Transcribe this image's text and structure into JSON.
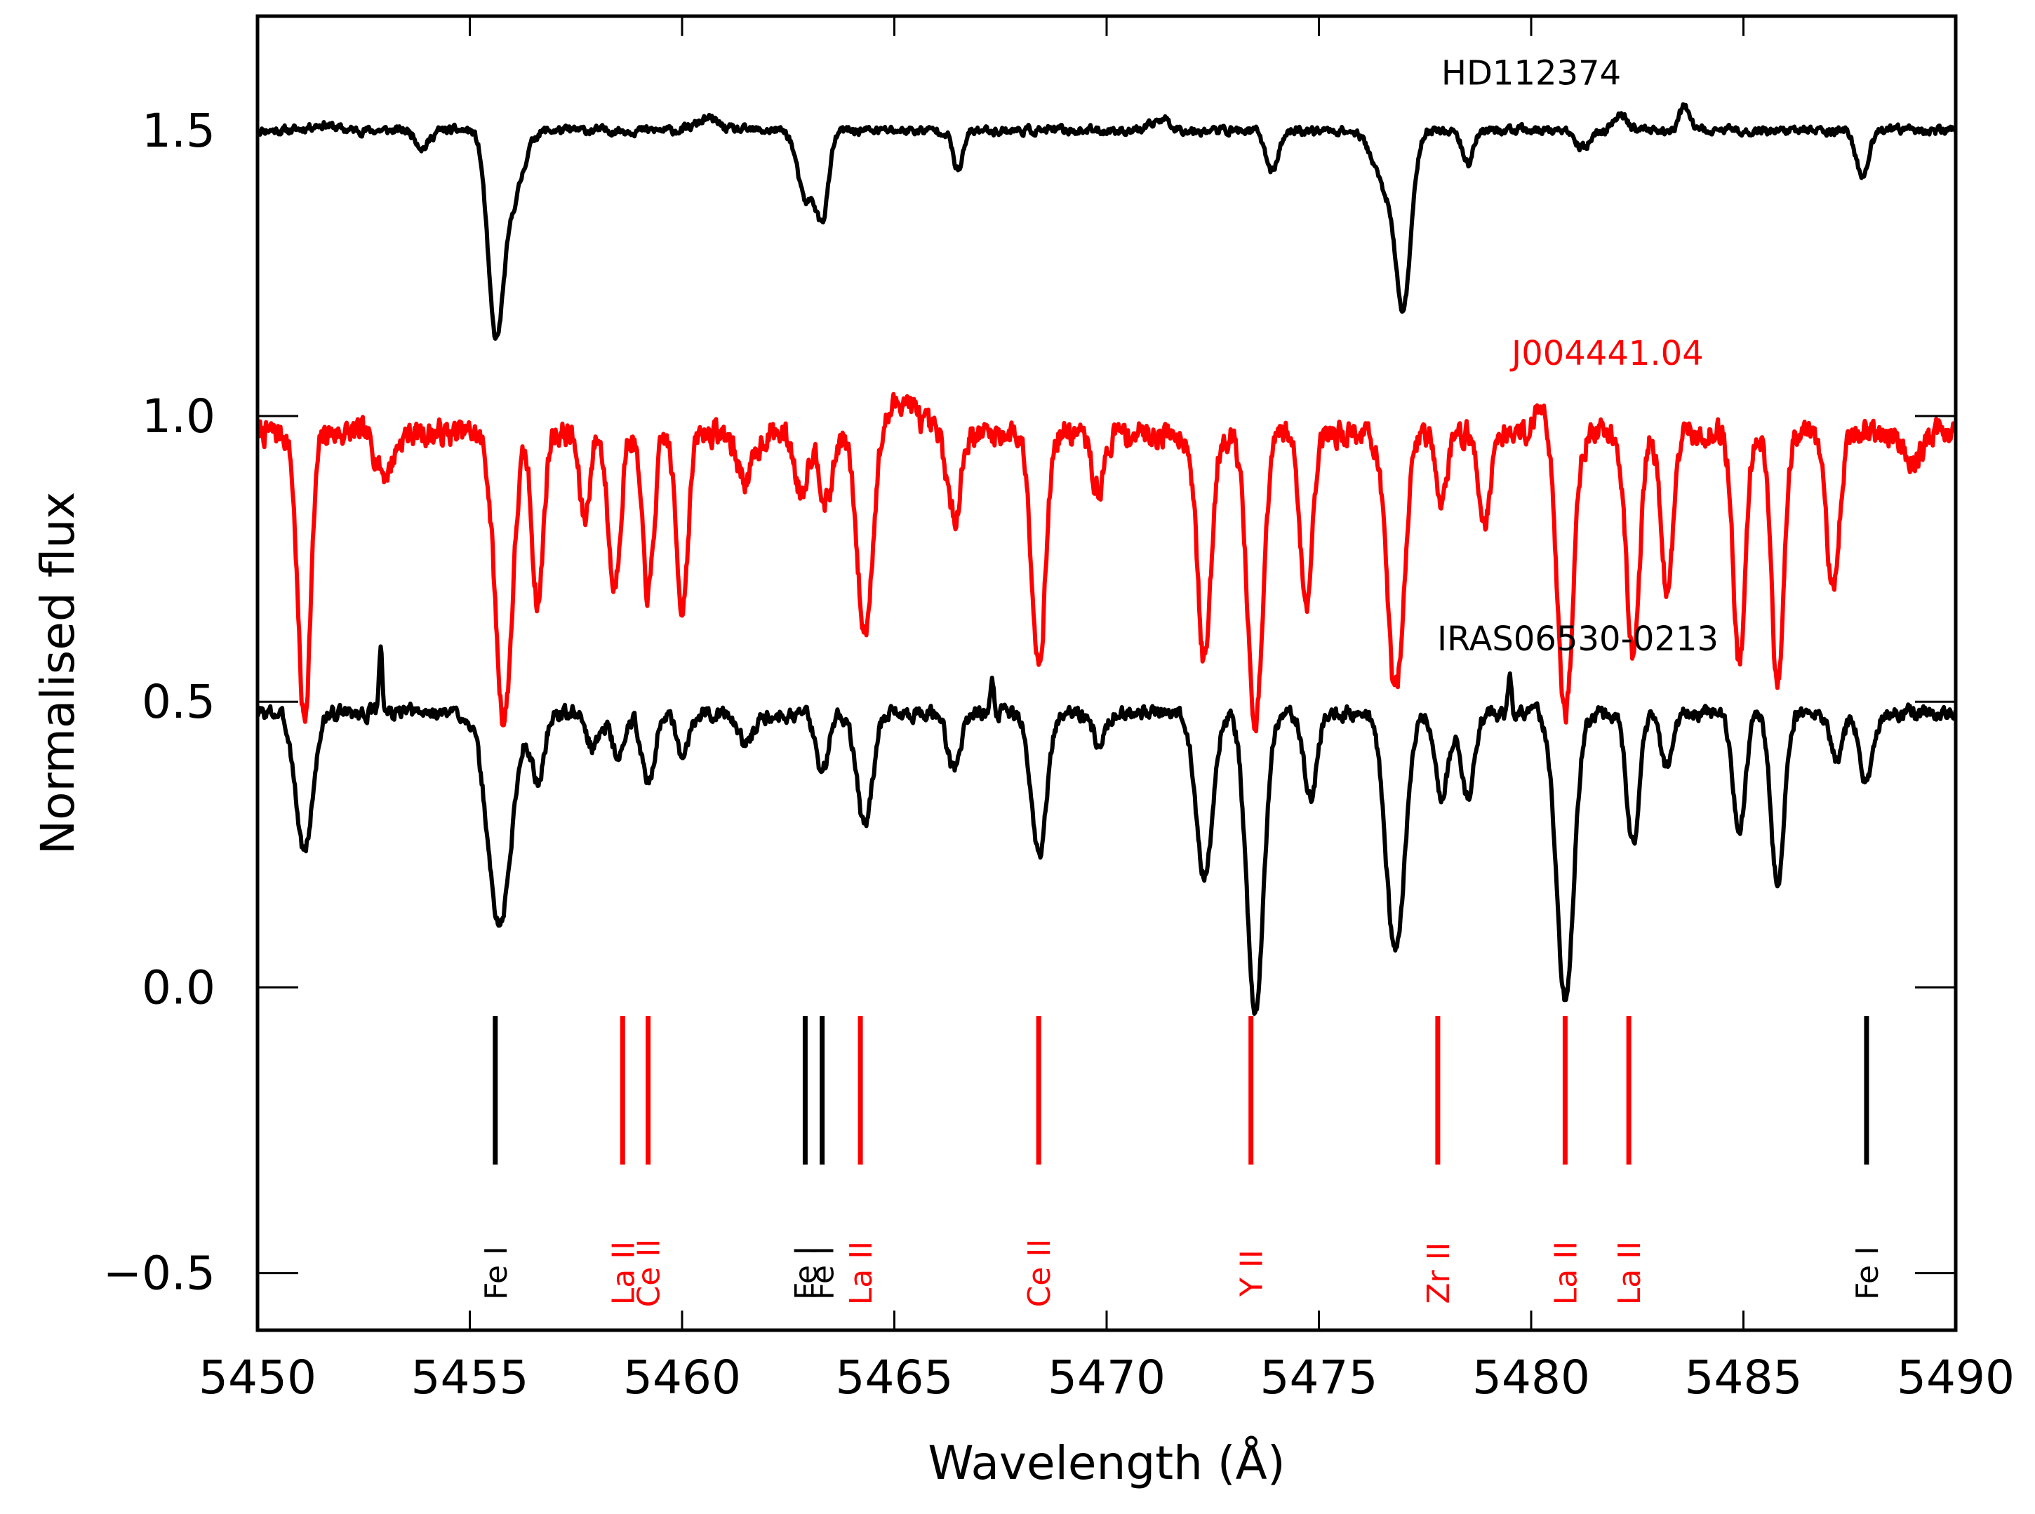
{
  "chart_data": {
    "type": "line",
    "xlabel": "Wavelength (Å)",
    "ylabel": "Normalised flux",
    "xlim": [
      5450,
      5490
    ],
    "ylim": [
      -0.6,
      1.7
    ],
    "x_ticks": [
      5450,
      5455,
      5460,
      5465,
      5470,
      5475,
      5480,
      5485,
      5490
    ],
    "y_ticks": [
      -0.5,
      0.0,
      0.5,
      1.0,
      1.5
    ],
    "x_tick_labels": [
      "5450",
      "5455",
      "5460",
      "5465",
      "5470",
      "5475",
      "5480",
      "5485",
      "5490"
    ],
    "y_tick_labels": [
      "−0.5",
      "0.0",
      "0.5",
      "1.0",
      "1.5"
    ],
    "grid": false,
    "series": [
      {
        "name": "HD112374",
        "color": "#000000",
        "continuum": 1.5,
        "noise": 0.006,
        "seed": 11,
        "features": [
          [
            5453.9,
            0.03,
            0.15
          ],
          [
            5455.6,
            0.33,
            0.18
          ],
          [
            5456.0,
            0.12,
            0.25
          ],
          [
            5462.9,
            0.12,
            0.18
          ],
          [
            5463.3,
            0.15,
            0.15
          ],
          [
            5466.5,
            0.07,
            0.12
          ],
          [
            5473.9,
            0.07,
            0.15
          ],
          [
            5476.6,
            0.1,
            0.3
          ],
          [
            5477.0,
            0.27,
            0.18
          ],
          [
            5478.5,
            0.06,
            0.12
          ],
          [
            5481.2,
            0.03,
            0.2
          ],
          [
            5487.8,
            0.08,
            0.15
          ]
        ],
        "emission": [
          [
            5451.5,
            0.01,
            0.3
          ],
          [
            5460.6,
            0.02,
            0.25
          ],
          [
            5471.3,
            0.02,
            0.2
          ],
          [
            5482.1,
            0.03,
            0.15
          ],
          [
            5483.6,
            0.04,
            0.12
          ]
        ]
      },
      {
        "name": "J004441.04",
        "color": "#ff0000",
        "continuum": 0.97,
        "noise": 0.018,
        "seed": 7,
        "features": [
          [
            5451.1,
            0.5,
            0.15
          ],
          [
            5453.0,
            0.07,
            0.2
          ],
          [
            5455.8,
            0.5,
            0.2
          ],
          [
            5456.6,
            0.3,
            0.13
          ],
          [
            5457.7,
            0.15,
            0.12
          ],
          [
            5458.4,
            0.27,
            0.14
          ],
          [
            5459.2,
            0.28,
            0.14
          ],
          [
            5460.0,
            0.3,
            0.14
          ],
          [
            5461.5,
            0.08,
            0.2
          ],
          [
            5462.8,
            0.1,
            0.15
          ],
          [
            5463.4,
            0.12,
            0.15
          ],
          [
            5464.3,
            0.35,
            0.18
          ],
          [
            5466.4,
            0.15,
            0.15
          ],
          [
            5468.4,
            0.4,
            0.16
          ],
          [
            5469.8,
            0.1,
            0.15
          ],
          [
            5472.3,
            0.4,
            0.16
          ],
          [
            5473.5,
            0.52,
            0.18
          ],
          [
            5474.7,
            0.3,
            0.14
          ],
          [
            5476.8,
            0.45,
            0.2
          ],
          [
            5477.9,
            0.12,
            0.12
          ],
          [
            5478.9,
            0.15,
            0.14
          ],
          [
            5480.8,
            0.5,
            0.18
          ],
          [
            5482.4,
            0.4,
            0.15
          ],
          [
            5483.2,
            0.28,
            0.14
          ],
          [
            5484.9,
            0.4,
            0.14
          ],
          [
            5485.8,
            0.45,
            0.14
          ],
          [
            5487.1,
            0.28,
            0.15
          ],
          [
            5489.0,
            0.05,
            0.2
          ]
        ],
        "emission": [
          [
            5465.2,
            0.06,
            0.3
          ],
          [
            5480.3,
            0.05,
            0.2
          ]
        ]
      },
      {
        "name": "IRAS06530-0213",
        "color": "#000000",
        "continuum": 0.48,
        "noise": 0.01,
        "seed": 3,
        "features": [
          [
            5451.1,
            0.24,
            0.2
          ],
          [
            5455.7,
            0.37,
            0.28
          ],
          [
            5456.6,
            0.12,
            0.15
          ],
          [
            5457.9,
            0.06,
            0.15
          ],
          [
            5458.5,
            0.08,
            0.15
          ],
          [
            5459.2,
            0.12,
            0.15
          ],
          [
            5460.0,
            0.08,
            0.14
          ],
          [
            5461.5,
            0.05,
            0.2
          ],
          [
            5463.3,
            0.1,
            0.15
          ],
          [
            5464.3,
            0.2,
            0.18
          ],
          [
            5466.4,
            0.1,
            0.15
          ],
          [
            5468.4,
            0.25,
            0.18
          ],
          [
            5469.8,
            0.05,
            0.15
          ],
          [
            5472.3,
            0.28,
            0.2
          ],
          [
            5473.5,
            0.52,
            0.2
          ],
          [
            5474.8,
            0.15,
            0.15
          ],
          [
            5476.8,
            0.42,
            0.22
          ],
          [
            5477.9,
            0.15,
            0.15
          ],
          [
            5478.5,
            0.15,
            0.15
          ],
          [
            5480.8,
            0.5,
            0.2
          ],
          [
            5482.4,
            0.23,
            0.15
          ],
          [
            5483.2,
            0.1,
            0.14
          ],
          [
            5484.9,
            0.2,
            0.15
          ],
          [
            5485.8,
            0.3,
            0.15
          ],
          [
            5487.2,
            0.08,
            0.15
          ],
          [
            5487.9,
            0.12,
            0.15
          ]
        ],
        "emission": [
          [
            5452.9,
            0.12,
            0.04
          ],
          [
            5467.3,
            0.06,
            0.05
          ],
          [
            5479.5,
            0.06,
            0.04
          ]
        ]
      }
    ],
    "annotations": [
      {
        "text": "HD112374",
        "color": "#000000",
        "x": 5480.0,
        "y": 1.58
      },
      {
        "text": "J004441.04",
        "color": "#ff0000",
        "x": 5481.8,
        "y": 1.09
      },
      {
        "text": "IRAS06530-0213",
        "color": "#000000",
        "x": 5481.1,
        "y": 0.59
      }
    ],
    "line_markers": [
      {
        "x": 5455.6,
        "label": "Fe I",
        "color": "#000000"
      },
      {
        "x": 5458.6,
        "label": "La II",
        "color": "#ff0000"
      },
      {
        "x": 5459.2,
        "label": "Ce II",
        "color": "#ff0000"
      },
      {
        "x": 5462.9,
        "label": "Fe I",
        "color": "#000000"
      },
      {
        "x": 5463.3,
        "label": "Fe I",
        "color": "#000000"
      },
      {
        "x": 5464.2,
        "label": "La II",
        "color": "#ff0000"
      },
      {
        "x": 5468.4,
        "label": "Ce II",
        "color": "#ff0000"
      },
      {
        "x": 5473.4,
        "label": "Y II",
        "color": "#ff0000"
      },
      {
        "x": 5477.8,
        "label": "Zr II",
        "color": "#ff0000"
      },
      {
        "x": 5480.8,
        "label": "La II",
        "color": "#ff0000"
      },
      {
        "x": 5482.3,
        "label": "La II",
        "color": "#ff0000"
      },
      {
        "x": 5487.9,
        "label": "Fe I",
        "color": "#000000"
      }
    ],
    "marker_range": [
      -0.05,
      -0.31
    ],
    "marker_label_y": -0.5
  }
}
